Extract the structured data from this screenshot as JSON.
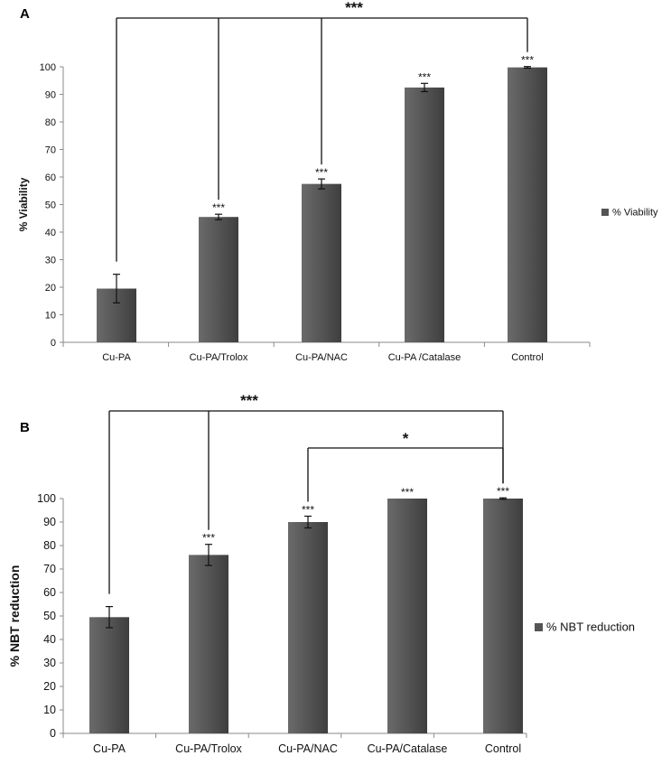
{
  "chart_data": [
    {
      "panel": "A",
      "type": "bar",
      "categories": [
        "Cu-PA",
        "Cu-PA/Trolox",
        "Cu-PA/NAC",
        "Cu-PA /Catalase",
        "Control"
      ],
      "series": [
        {
          "name": "% Viability",
          "values": [
            19.5,
            45.5,
            57.5,
            92.5,
            99.8
          ],
          "errors": [
            5.2,
            1.0,
            1.8,
            1.5,
            0.3
          ]
        }
      ],
      "significance": [
        "",
        "***",
        "***",
        "***",
        "***"
      ],
      "brackets": [
        {
          "from": 0,
          "to": [
            1,
            2,
            4
          ],
          "label": "***"
        }
      ],
      "ylabel": "% Viability",
      "xlabel": "",
      "ylim": [
        0,
        100
      ],
      "yticks": [
        0,
        10,
        20,
        30,
        40,
        50,
        60,
        70,
        80,
        90,
        100
      ],
      "legend": "right",
      "color": "#545454"
    },
    {
      "panel": "B",
      "type": "bar",
      "categories": [
        "Cu-PA",
        "Cu-PA/Trolox",
        "Cu-PA/NAC",
        "Cu-PA/Catalase",
        "Control"
      ],
      "series": [
        {
          "name": "% NBT reduction",
          "values": [
            49.5,
            76,
            90,
            100,
            100
          ],
          "errors": [
            4.5,
            4.5,
            2.5,
            0,
            0.3
          ]
        }
      ],
      "significance": [
        "",
        "***",
        "***",
        "***",
        "***"
      ],
      "brackets": [
        {
          "from": 0,
          "to": [
            1,
            4
          ],
          "label": "***"
        },
        {
          "from": 2,
          "to": [
            4
          ],
          "label": "*"
        }
      ],
      "ylabel": "% NBT reduction",
      "xlabel": "",
      "ylim": [
        0,
        100
      ],
      "yticks": [
        0,
        10,
        20,
        30,
        40,
        50,
        60,
        70,
        80,
        90,
        100
      ],
      "legend": "right",
      "color": "#5a5a5a"
    }
  ]
}
